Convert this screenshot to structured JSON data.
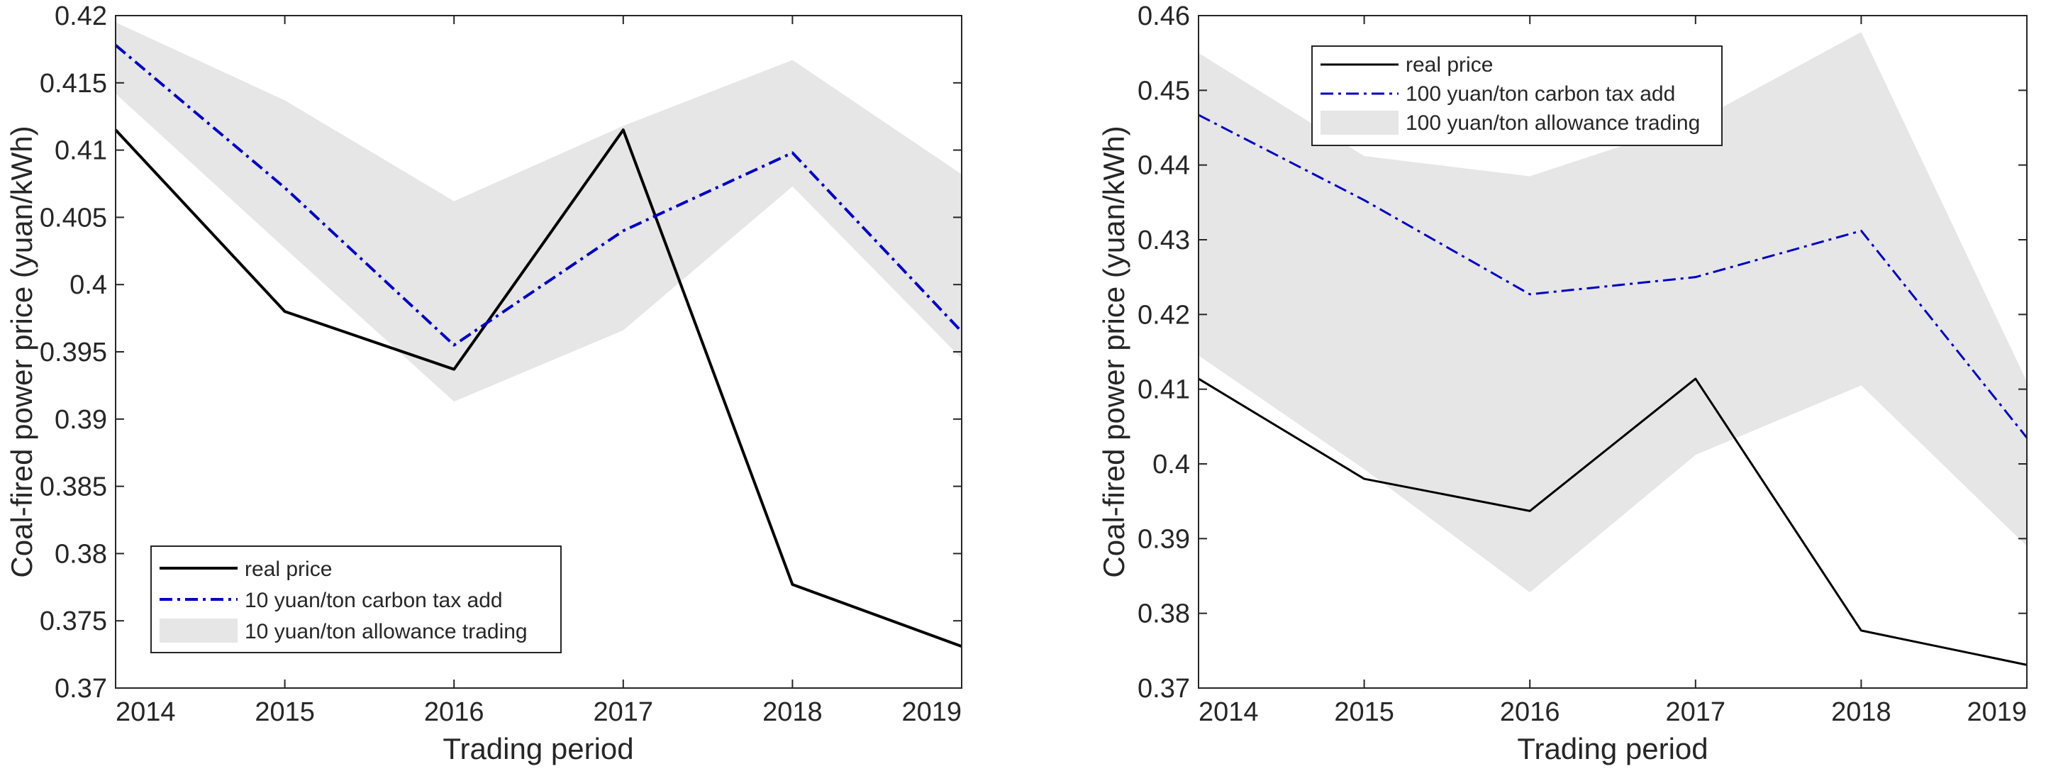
{
  "chart_data": [
    {
      "type": "line",
      "title": "",
      "xlabel": "Trading period",
      "ylabel": "Coal-fired power price (yuan/kWh)",
      "x": [
        2014,
        2015,
        2016,
        2017,
        2018,
        2019
      ],
      "xlim": [
        2014,
        2019
      ],
      "ylim": [
        0.37,
        0.42
      ],
      "yticks": [
        0.37,
        0.375,
        0.38,
        0.385,
        0.39,
        0.395,
        0.4,
        0.405,
        0.41,
        0.415,
        0.42
      ],
      "ytick_labels": [
        "0.37",
        "0.375",
        "0.38",
        "0.385",
        "0.39",
        "0.395",
        "0.4",
        "0.405",
        "0.41",
        "0.415",
        "0.42"
      ],
      "xtick_labels": [
        "2014",
        "2015",
        "2016",
        "2017",
        "2018",
        "2019"
      ],
      "legend_position": "bottom-left",
      "series": [
        {
          "name": "real price",
          "style": "solid",
          "color": "#000000",
          "values": [
            0.4115,
            0.398,
            0.3937,
            0.4115,
            0.3777,
            0.3731
          ]
        },
        {
          "name": "10 yuan/ton carbon tax add",
          "style": "dash-dot",
          "color": "#0000bf",
          "values": [
            0.4178,
            0.4072,
            0.3955,
            0.404,
            0.4098,
            0.3965
          ]
        }
      ],
      "band": {
        "name": "10 yuan/ton allowance trading",
        "color": "#e6e6e6",
        "upper": [
          0.4195,
          0.4137,
          0.4062,
          0.4118,
          0.4167,
          0.4082
        ],
        "lower": [
          0.4142,
          0.4027,
          0.3913,
          0.3966,
          0.4073,
          0.3945
        ]
      }
    },
    {
      "type": "line",
      "title": "",
      "xlabel": "Trading period",
      "ylabel": "Coal-fired power price (yuan/kWh)",
      "x": [
        2014,
        2015,
        2016,
        2017,
        2018,
        2019
      ],
      "xlim": [
        2014,
        2019
      ],
      "ylim": [
        0.37,
        0.46
      ],
      "yticks": [
        0.37,
        0.38,
        0.39,
        0.4,
        0.41,
        0.42,
        0.43,
        0.44,
        0.45,
        0.46
      ],
      "ytick_labels": [
        "0.37",
        "0.38",
        "0.39",
        "0.4",
        "0.41",
        "0.42",
        "0.43",
        "0.44",
        "0.45",
        "0.46"
      ],
      "xtick_labels": [
        "2014",
        "2015",
        "2016",
        "2017",
        "2018",
        "2019"
      ],
      "legend_position": "top-left",
      "series": [
        {
          "name": "real price",
          "style": "solid",
          "color": "#000000",
          "values": [
            0.4114,
            0.398,
            0.3937,
            0.4114,
            0.3777,
            0.3731
          ]
        },
        {
          "name": "100 yuan/ton carbon tax add",
          "style": "dash-dot",
          "color": "#0000bf",
          "values": [
            0.4467,
            0.4353,
            0.4227,
            0.425,
            0.4312,
            0.4035
          ]
        }
      ],
      "band": {
        "name": "100 yuan/ton allowance trading",
        "color": "#e6e6e6",
        "upper": [
          0.455,
          0.4412,
          0.4385,
          0.4458,
          0.4578,
          0.411
        ],
        "lower": [
          0.4145,
          0.3993,
          0.3828,
          0.4012,
          0.4105,
          0.389
        ]
      }
    }
  ]
}
